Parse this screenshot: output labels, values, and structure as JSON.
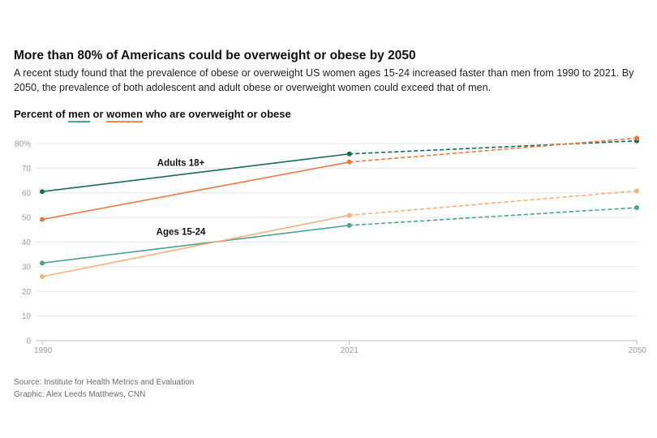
{
  "title": "More than 80% of Americans could be overweight or obese by 2050",
  "subtitle": "A recent study found that the prevalence of obese or overweight US women ages 15-24 increased faster than men from 1990 to 2021. By 2050, the prevalence of both adolescent and adult obese or overweight women could exceed that of men.",
  "legend": {
    "prefix": "Percent of ",
    "men": "men",
    "or": " or ",
    "women": "women",
    "suffix": " who are overweight or obese"
  },
  "source": "Source: Institute for Health Metrics and Evaluation",
  "credit": "Graphic: Alex Leeds Matthews, CNN",
  "colors": {
    "men_adults": "#1b6b5a",
    "women_adults": "#ec7a3f",
    "men_youth": "#4aa58c",
    "women_youth": "#f6b07e",
    "grid": "#e6e6e6",
    "axis": "#bdbdbd"
  },
  "chart_data": {
    "type": "line",
    "x": [
      1990,
      2021,
      2050
    ],
    "x_tick_labels": [
      "1990",
      "2021",
      "2050"
    ],
    "y_ticks": [
      0,
      10,
      20,
      30,
      40,
      50,
      60,
      70,
      80
    ],
    "y_tick_labels": [
      "0",
      "10",
      "20",
      "30",
      "40",
      "50",
      "60",
      "70",
      "80%"
    ],
    "ylim": [
      0,
      80
    ],
    "projection_start": 2021,
    "annotations": [
      {
        "text": "Adults 18+",
        "x": 2004,
        "y": 71
      },
      {
        "text": "Ages 15-24",
        "x": 2004,
        "y": 43
      }
    ],
    "series": [
      {
        "name": "Men, adults 18+",
        "values": [
          60.5,
          75.8,
          81.1
        ],
        "color_key": "men_adults"
      },
      {
        "name": "Women, adults 18+",
        "values": [
          49.2,
          72.5,
          82.2
        ],
        "color_key": "women_adults"
      },
      {
        "name": "Men, ages 15-24",
        "values": [
          31.5,
          46.8,
          54.0
        ],
        "color_key": "men_youth"
      },
      {
        "name": "Women, ages 15-24",
        "values": [
          26.0,
          50.9,
          60.8
        ],
        "color_key": "women_youth"
      }
    ]
  }
}
